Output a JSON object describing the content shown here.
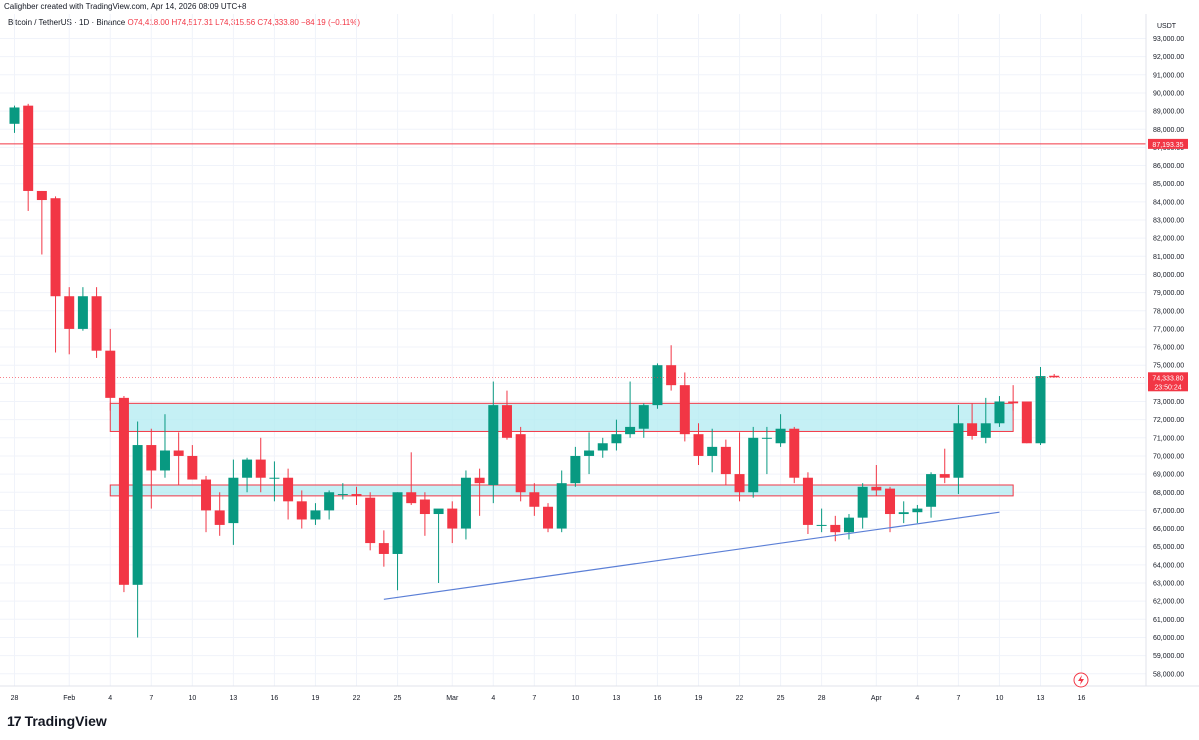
{
  "header": {
    "credit": "Calighber created with TradingView.com, Apr 14, 2026 08:09 UTC+8",
    "symbol": "Bitcoin / TetherUS · 1D · Binance",
    "open": "O74,418.00",
    "high": "H74,517.31",
    "low": "L74,315.56",
    "close": "C74,333.80",
    "change": "−84.19 (−0.11%)"
  },
  "logo": {
    "mark": "17",
    "text": "TradingView"
  },
  "colors": {
    "up": "#089981",
    "down": "#f23645",
    "zone_fill": "#b2ebf2",
    "zone_border": "#f23645",
    "trendline": "#5b7fd6",
    "resistance_line": "#f23645",
    "grid": "#f0f3fa"
  },
  "chart_data": {
    "type": "candlestick",
    "currency": "USDT",
    "ylim": [
      57000,
      93600
    ],
    "y_ticks": [
      "58,000.00",
      "59,000.00",
      "60,000.00",
      "61,000.00",
      "62,000.00",
      "63,000.00",
      "64,000.00",
      "65,000.00",
      "66,000.00",
      "67,000.00",
      "68,000.00",
      "69,000.00",
      "70,000.00",
      "71,000.00",
      "72,000.00",
      "73,000.00",
      "74,000.00",
      "75,000.00",
      "76,000.00",
      "77,000.00",
      "78,000.00",
      "79,000.00",
      "80,000.00",
      "81,000.00",
      "82,000.00",
      "83,000.00",
      "84,000.00",
      "85,000.00",
      "86,000.00",
      "87,000.00",
      "88,000.00",
      "89,000.00",
      "90,000.00",
      "91,000.00",
      "92,000.00",
      "93,000.00"
    ],
    "x_labels": [
      {
        "label": "28",
        "day": 0
      },
      {
        "label": "Feb",
        "day": 4
      },
      {
        "label": "4",
        "day": 7
      },
      {
        "label": "7",
        "day": 10
      },
      {
        "label": "10",
        "day": 13
      },
      {
        "label": "13",
        "day": 16
      },
      {
        "label": "16",
        "day": 19
      },
      {
        "label": "19",
        "day": 22
      },
      {
        "label": "22",
        "day": 25
      },
      {
        "label": "25",
        "day": 28
      },
      {
        "label": "Mar",
        "day": 32
      },
      {
        "label": "4",
        "day": 35
      },
      {
        "label": "7",
        "day": 38
      },
      {
        "label": "10",
        "day": 41
      },
      {
        "label": "13",
        "day": 44
      },
      {
        "label": "16",
        "day": 47
      },
      {
        "label": "19",
        "day": 50
      },
      {
        "label": "22",
        "day": 53
      },
      {
        "label": "25",
        "day": 56
      },
      {
        "label": "28",
        "day": 59
      },
      {
        "label": "Apr",
        "day": 63
      },
      {
        "label": "4",
        "day": 66
      },
      {
        "label": "7",
        "day": 69
      },
      {
        "label": "10",
        "day": 72
      },
      {
        "label": "13",
        "day": 75
      },
      {
        "label": "16",
        "day": 78
      }
    ],
    "candles": [
      {
        "o": 88300,
        "h": 89300,
        "l": 87800,
        "c": 89200
      },
      {
        "o": 89300,
        "h": 89400,
        "l": 83500,
        "c": 84600
      },
      {
        "o": 84600,
        "h": 84600,
        "l": 81100,
        "c": 84100
      },
      {
        "o": 84200,
        "h": 84300,
        "l": 75700,
        "c": 78800
      },
      {
        "o": 78800,
        "h": 79300,
        "l": 75600,
        "c": 77000
      },
      {
        "o": 77000,
        "h": 79300,
        "l": 76900,
        "c": 78800
      },
      {
        "o": 78800,
        "h": 79300,
        "l": 75400,
        "c": 75800
      },
      {
        "o": 75800,
        "h": 77000,
        "l": 72500,
        "c": 73200
      },
      {
        "o": 73200,
        "h": 73300,
        "l": 62500,
        "c": 62900
      },
      {
        "o": 62900,
        "h": 71900,
        "l": 60000,
        "c": 70600
      },
      {
        "o": 70600,
        "h": 71500,
        "l": 67100,
        "c": 69200
      },
      {
        "o": 69200,
        "h": 72300,
        "l": 68800,
        "c": 70300
      },
      {
        "o": 70300,
        "h": 71300,
        "l": 68400,
        "c": 70000
      },
      {
        "o": 70000,
        "h": 70600,
        "l": 68700,
        "c": 68700
      },
      {
        "o": 68700,
        "h": 68900,
        "l": 65800,
        "c": 67000
      },
      {
        "o": 67000,
        "h": 68000,
        "l": 65600,
        "c": 66200
      },
      {
        "o": 66300,
        "h": 69800,
        "l": 65100,
        "c": 68800
      },
      {
        "o": 68800,
        "h": 69900,
        "l": 68000,
        "c": 69800
      },
      {
        "o": 69800,
        "h": 71000,
        "l": 68000,
        "c": 68800
      },
      {
        "o": 68800,
        "h": 69700,
        "l": 67500,
        "c": 68800
      },
      {
        "o": 68800,
        "h": 69300,
        "l": 66500,
        "c": 67500
      },
      {
        "o": 67500,
        "h": 68100,
        "l": 66000,
        "c": 66500
      },
      {
        "o": 66500,
        "h": 67400,
        "l": 66200,
        "c": 67000
      },
      {
        "o": 67000,
        "h": 68100,
        "l": 66500,
        "c": 68000
      },
      {
        "o": 67900,
        "h": 68500,
        "l": 67600,
        "c": 67900
      },
      {
        "o": 67900,
        "h": 68300,
        "l": 67300,
        "c": 67800
      },
      {
        "o": 67700,
        "h": 68000,
        "l": 64800,
        "c": 65200
      },
      {
        "o": 65200,
        "h": 65900,
        "l": 63900,
        "c": 64600
      },
      {
        "o": 64600,
        "h": 68000,
        "l": 62600,
        "c": 68000
      },
      {
        "o": 68000,
        "h": 70200,
        "l": 67300,
        "c": 67400
      },
      {
        "o": 67600,
        "h": 68000,
        "l": 65600,
        "c": 66800
      },
      {
        "o": 66800,
        "h": 67000,
        "l": 63000,
        "c": 67100
      },
      {
        "o": 67100,
        "h": 67500,
        "l": 65200,
        "c": 66000
      },
      {
        "o": 66000,
        "h": 69200,
        "l": 65400,
        "c": 68800
      },
      {
        "o": 68800,
        "h": 69300,
        "l": 66700,
        "c": 68500
      },
      {
        "o": 68400,
        "h": 74100,
        "l": 67400,
        "c": 72800
      },
      {
        "o": 72800,
        "h": 73600,
        "l": 70900,
        "c": 71000
      },
      {
        "o": 71200,
        "h": 71600,
        "l": 67500,
        "c": 68000
      },
      {
        "o": 68000,
        "h": 68500,
        "l": 66700,
        "c": 67200
      },
      {
        "o": 67200,
        "h": 67400,
        "l": 65800,
        "c": 66000
      },
      {
        "o": 66000,
        "h": 69200,
        "l": 65800,
        "c": 68500
      },
      {
        "o": 68500,
        "h": 70500,
        "l": 68300,
        "c": 70000
      },
      {
        "o": 70000,
        "h": 71300,
        "l": 69000,
        "c": 70300
      },
      {
        "o": 70300,
        "h": 71000,
        "l": 69900,
        "c": 70700
      },
      {
        "o": 70700,
        "h": 72000,
        "l": 70300,
        "c": 71200
      },
      {
        "o": 71200,
        "h": 74100,
        "l": 71000,
        "c": 71600
      },
      {
        "o": 71500,
        "h": 72900,
        "l": 71000,
        "c": 72800
      },
      {
        "o": 72800,
        "h": 75100,
        "l": 72600,
        "c": 75000
      },
      {
        "o": 75000,
        "h": 76100,
        "l": 73600,
        "c": 73900
      },
      {
        "o": 73900,
        "h": 74600,
        "l": 70800,
        "c": 71200
      },
      {
        "o": 71200,
        "h": 71800,
        "l": 69500,
        "c": 70000
      },
      {
        "o": 70000,
        "h": 71500,
        "l": 69100,
        "c": 70500
      },
      {
        "o": 70500,
        "h": 70900,
        "l": 68400,
        "c": 69000
      },
      {
        "o": 69000,
        "h": 71300,
        "l": 67500,
        "c": 68000
      },
      {
        "o": 68000,
        "h": 71600,
        "l": 67700,
        "c": 71000
      },
      {
        "o": 71000,
        "h": 71600,
        "l": 69000,
        "c": 71000
      },
      {
        "o": 70700,
        "h": 72300,
        "l": 70500,
        "c": 71500
      },
      {
        "o": 71500,
        "h": 71600,
        "l": 68500,
        "c": 68800
      },
      {
        "o": 68800,
        "h": 69100,
        "l": 65700,
        "c": 66200
      },
      {
        "o": 66200,
        "h": 67100,
        "l": 65800,
        "c": 66200
      },
      {
        "o": 66200,
        "h": 66700,
        "l": 65300,
        "c": 65800
      },
      {
        "o": 65800,
        "h": 66800,
        "l": 65400,
        "c": 66600
      },
      {
        "o": 66600,
        "h": 68500,
        "l": 66000,
        "c": 68300
      },
      {
        "o": 68300,
        "h": 69500,
        "l": 67800,
        "c": 68100
      },
      {
        "o": 68200,
        "h": 68300,
        "l": 65800,
        "c": 66800
      },
      {
        "o": 66800,
        "h": 67500,
        "l": 66300,
        "c": 66900
      },
      {
        "o": 66900,
        "h": 67300,
        "l": 66300,
        "c": 67100
      },
      {
        "o": 67200,
        "h": 69100,
        "l": 66600,
        "c": 69000
      },
      {
        "o": 69000,
        "h": 70400,
        "l": 68500,
        "c": 68800
      },
      {
        "o": 68800,
        "h": 72800,
        "l": 67900,
        "c": 71800
      },
      {
        "o": 71800,
        "h": 72900,
        "l": 70900,
        "c": 71100
      },
      {
        "o": 71000,
        "h": 73200,
        "l": 70700,
        "c": 71800
      },
      {
        "o": 71800,
        "h": 73300,
        "l": 71600,
        "c": 73000
      },
      {
        "o": 73000,
        "h": 73900,
        "l": 72500,
        "c": 72900
      },
      {
        "o": 73000,
        "h": 73000,
        "l": 70700,
        "c": 70700
      },
      {
        "o": 70700,
        "h": 74900,
        "l": 70600,
        "c": 74400
      },
      {
        "o": 74418,
        "h": 74517,
        "l": 74315,
        "c": 74334
      }
    ],
    "resistance_line": {
      "price": 87193.35,
      "label": "87,193.35"
    },
    "last_price": {
      "price": 74333.8,
      "label": "74,333.80",
      "countdown": "23:50:24"
    },
    "zones": [
      {
        "from_day": 7,
        "to_day": 73,
        "top": 72900,
        "bottom": 71350
      },
      {
        "from_day": 7,
        "to_day": 73,
        "top": 68400,
        "bottom": 67800
      }
    ],
    "trendline": {
      "from_day": 27,
      "from_price": 62100,
      "to_day": 72,
      "to_price": 66900
    }
  }
}
